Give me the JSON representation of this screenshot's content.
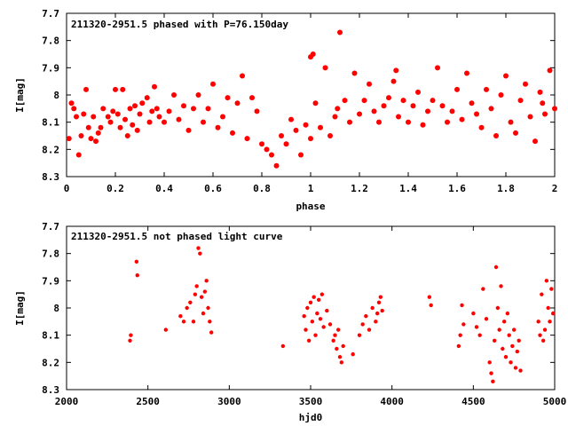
{
  "chart_data": [
    {
      "type": "scatter",
      "title": "211320-2951.5 phased with P=76.150day",
      "xlabel": "phase",
      "ylabel": "I[mag]",
      "xlim": [
        0,
        2
      ],
      "ylim": [
        8.3,
        7.7
      ],
      "y_inverted": true,
      "grid": false,
      "marker_color": "#ff0000",
      "xticks": [
        "0",
        "0.2",
        "0.4",
        "0.6",
        "0.8",
        "1",
        "1.2",
        "1.4",
        "1.6",
        "1.8",
        "2"
      ],
      "yticks": [
        "7.7",
        "7.8",
        "7.9",
        "8",
        "8.1",
        "8.2",
        "8.3"
      ],
      "x": [
        0.01,
        0.02,
        0.03,
        0.04,
        0.05,
        0.06,
        0.07,
        0.08,
        0.09,
        0.1,
        0.11,
        0.12,
        0.13,
        0.14,
        0.15,
        0.17,
        0.18,
        0.19,
        0.2,
        0.21,
        0.22,
        0.23,
        0.24,
        0.25,
        0.26,
        0.27,
        0.28,
        0.29,
        0.3,
        0.31,
        0.33,
        0.34,
        0.35,
        0.36,
        0.37,
        0.38,
        0.4,
        0.42,
        0.44,
        0.46,
        0.48,
        0.5,
        0.52,
        0.54,
        0.56,
        0.58,
        0.6,
        0.62,
        0.64,
        0.66,
        0.68,
        0.7,
        0.72,
        0.74,
        0.76,
        0.78,
        0.8,
        0.82,
        0.84,
        0.86,
        0.88,
        0.9,
        0.92,
        0.94,
        0.96,
        0.98,
        1.0,
        1.0,
        1.01,
        1.02,
        1.04,
        1.06,
        1.08,
        1.1,
        1.11,
        1.12,
        1.14,
        1.16,
        1.18,
        1.2,
        1.22,
        1.24,
        1.26,
        1.28,
        1.3,
        1.32,
        1.34,
        1.35,
        1.36,
        1.38,
        1.4,
        1.42,
        1.44,
        1.46,
        1.48,
        1.5,
        1.52,
        1.54,
        1.56,
        1.58,
        1.6,
        1.62,
        1.64,
        1.66,
        1.68,
        1.7,
        1.72,
        1.74,
        1.76,
        1.78,
        1.8,
        1.82,
        1.84,
        1.86,
        1.88,
        1.9,
        1.92,
        1.94,
        1.95,
        1.96,
        1.98,
        2.0
      ],
      "y": [
        8.16,
        8.03,
        8.05,
        8.08,
        8.22,
        8.15,
        8.07,
        7.98,
        8.12,
        8.16,
        8.08,
        8.17,
        8.14,
        8.12,
        8.05,
        8.08,
        8.1,
        8.06,
        7.98,
        8.07,
        8.12,
        7.98,
        8.09,
        8.15,
        8.05,
        8.11,
        8.04,
        8.13,
        8.07,
        8.03,
        8.01,
        8.1,
        8.06,
        7.97,
        8.05,
        8.08,
        8.1,
        8.06,
        8.0,
        8.09,
        8.04,
        8.13,
        8.05,
        8.0,
        8.1,
        8.05,
        7.96,
        8.12,
        8.08,
        8.01,
        8.14,
        8.03,
        7.93,
        8.16,
        8.01,
        8.06,
        8.18,
        8.2,
        8.22,
        8.26,
        8.15,
        8.18,
        8.09,
        8.13,
        8.22,
        8.11,
        8.16,
        7.86,
        7.85,
        8.03,
        8.12,
        7.9,
        8.15,
        8.08,
        8.05,
        7.77,
        8.02,
        8.1,
        7.92,
        8.07,
        8.02,
        7.96,
        8.06,
        8.1,
        8.04,
        8.01,
        7.95,
        7.91,
        8.08,
        8.02,
        8.1,
        8.04,
        7.99,
        8.11,
        8.06,
        8.02,
        7.9,
        8.04,
        8.1,
        8.06,
        7.98,
        8.09,
        7.92,
        8.03,
        8.07,
        8.12,
        7.98,
        8.05,
        8.15,
        8.0,
        7.93,
        8.1,
        8.14,
        8.02,
        7.96,
        8.08,
        8.17,
        7.99,
        8.03,
        8.07,
        7.91,
        8.05
      ],
      "ylabel_units": ""
    },
    {
      "type": "scatter",
      "title": "211320-2951.5 not phased light curve",
      "xlabel": "hjd0",
      "ylabel": "I[mag]",
      "xlim": [
        2000,
        5000
      ],
      "ylim": [
        8.3,
        7.7
      ],
      "y_inverted": true,
      "grid": false,
      "marker_color": "#ff0000",
      "xticks": [
        "2000",
        "2500",
        "3000",
        "3500",
        "4000",
        "4500",
        "5000"
      ],
      "yticks": [
        "7.7",
        "7.8",
        "7.9",
        "8",
        "8.1",
        "8.2",
        "8.3"
      ],
      "x": [
        2390,
        2395,
        2430,
        2435,
        2610,
        2700,
        2720,
        2740,
        2760,
        2780,
        2790,
        2800,
        2810,
        2820,
        2830,
        2840,
        2850,
        2860,
        2870,
        2880,
        2890,
        3330,
        3460,
        3470,
        3480,
        3490,
        3500,
        3510,
        3520,
        3530,
        3540,
        3550,
        3560,
        3570,
        3580,
        3600,
        3620,
        3640,
        3650,
        3660,
        3670,
        3680,
        3690,
        3700,
        3760,
        3800,
        3820,
        3840,
        3860,
        3880,
        3900,
        3910,
        3920,
        3930,
        3940,
        4230,
        4240,
        4410,
        4420,
        4430,
        4440,
        4500,
        4520,
        4540,
        4560,
        4580,
        4600,
        4610,
        4620,
        4630,
        4640,
        4650,
        4660,
        4670,
        4680,
        4690,
        4700,
        4710,
        4720,
        4730,
        4740,
        4750,
        4760,
        4770,
        4780,
        4790,
        4900,
        4910,
        4920,
        4930,
        4940,
        4950,
        4960,
        4970,
        4980,
        4990
      ],
      "y": [
        8.12,
        8.1,
        7.83,
        7.88,
        8.08,
        8.03,
        8.05,
        8.0,
        7.98,
        8.05,
        7.95,
        7.92,
        7.78,
        7.8,
        7.96,
        8.02,
        7.94,
        7.9,
        8.0,
        8.05,
        8.09,
        8.14,
        8.03,
        8.08,
        8.0,
        8.12,
        7.98,
        8.05,
        7.96,
        8.1,
        8.02,
        7.97,
        8.04,
        7.95,
        8.07,
        8.01,
        8.06,
        8.12,
        8.1,
        8.15,
        8.08,
        8.18,
        8.2,
        8.14,
        8.17,
        8.1,
        8.06,
        8.03,
        8.08,
        8.0,
        8.05,
        8.02,
        7.98,
        7.96,
        8.01,
        7.96,
        7.99,
        8.14,
        8.1,
        7.99,
        8.06,
        8.02,
        8.07,
        8.1,
        7.93,
        8.04,
        8.2,
        8.24,
        8.27,
        8.12,
        7.85,
        8.0,
        8.08,
        7.92,
        8.15,
        8.05,
        8.18,
        8.02,
        8.1,
        8.2,
        8.14,
        8.08,
        8.22,
        8.16,
        8.12,
        8.23,
        8.05,
        8.1,
        7.95,
        8.12,
        8.08,
        7.9,
        8.0,
        8.05,
        7.93,
        8.02
      ],
      "ylabel_units": ""
    }
  ]
}
